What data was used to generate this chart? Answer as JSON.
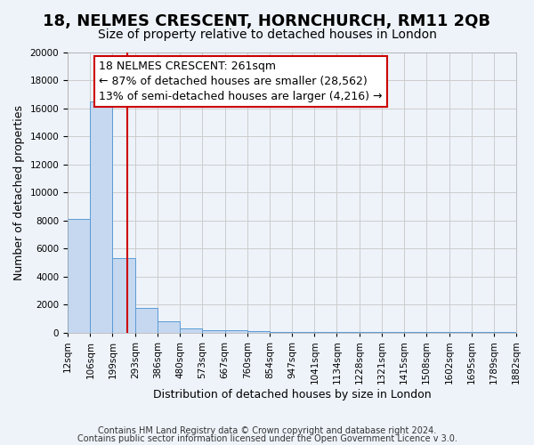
{
  "title": "18, NELMES CRESCENT, HORNCHURCH, RM11 2QB",
  "subtitle": "Size of property relative to detached houses in London",
  "xlabel": "Distribution of detached houses by size in London",
  "ylabel": "Number of detached properties",
  "bar_values": [
    8100,
    16500,
    5300,
    1750,
    800,
    300,
    200,
    150,
    100,
    50,
    50,
    50,
    50,
    50,
    50,
    50,
    50,
    50,
    50,
    50
  ],
  "bin_edges": [
    12,
    106,
    199,
    293,
    386,
    480,
    573,
    667,
    760,
    854,
    947,
    1041,
    1134,
    1228,
    1321,
    1415,
    1508,
    1602,
    1695,
    1789,
    1882
  ],
  "tick_labels": [
    "12sqm",
    "106sqm",
    "199sqm",
    "293sqm",
    "386sqm",
    "480sqm",
    "573sqm",
    "667sqm",
    "760sqm",
    "854sqm",
    "947sqm",
    "1041sqm",
    "1134sqm",
    "1228sqm",
    "1321sqm",
    "1415sqm",
    "1508sqm",
    "1602sqm",
    "1695sqm",
    "1789sqm",
    "1882sqm"
  ],
  "ylim": [
    0,
    20000
  ],
  "yticks": [
    0,
    2000,
    4000,
    6000,
    8000,
    10000,
    12000,
    14000,
    16000,
    18000,
    20000
  ],
  "bar_color": "#c5d8f0",
  "bar_edge_color": "#5b9bd5",
  "grid_color": "#cccccc",
  "background_color": "#eef3fa",
  "vline_x": 261,
  "vline_color": "#cc0000",
  "annotation_text": "18 NELMES CRESCENT: 261sqm\n← 87% of detached houses are smaller (28,562)\n13% of semi-detached houses are larger (4,216) →",
  "annotation_box_color": "#ffffff",
  "annotation_box_edge": "#cc0000",
  "footer_line1": "Contains HM Land Registry data © Crown copyright and database right 2024.",
  "footer_line2": "Contains public sector information licensed under the Open Government Licence v 3.0.",
  "title_fontsize": 13,
  "subtitle_fontsize": 10,
  "axis_label_fontsize": 9,
  "tick_fontsize": 7.5,
  "annotation_fontsize": 9,
  "footer_fontsize": 7
}
